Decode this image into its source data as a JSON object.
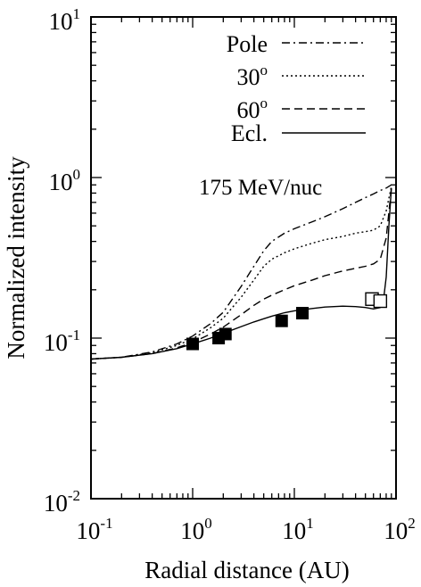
{
  "chart_data": {
    "type": "line",
    "title": "",
    "annotation": "175 MeV/nuc",
    "xlabel": "Radial distance (AU)",
    "ylabel": "Normalized intensity",
    "xscale": "log",
    "yscale": "log",
    "xlim": [
      0.1,
      100
    ],
    "ylim": [
      0.01,
      10
    ],
    "x_ticks": [
      {
        "base": "10",
        "exp": "-1",
        "value": 0.1
      },
      {
        "base": "10",
        "exp": "0",
        "value": 1
      },
      {
        "base": "10",
        "exp": "1",
        "value": 10
      },
      {
        "base": "10",
        "exp": "2",
        "value": 100
      }
    ],
    "y_ticks": [
      {
        "base": "10",
        "exp": "-2",
        "value": 0.01
      },
      {
        "base": "10",
        "exp": "-1",
        "value": 0.1
      },
      {
        "base": "10",
        "exp": "0",
        "value": 1
      },
      {
        "base": "10",
        "exp": "1",
        "value": 10
      }
    ],
    "legend_position": "top-right",
    "series": [
      {
        "name": "Pole",
        "style": "dash-dot",
        "points": [
          [
            0.1,
            0.074
          ],
          [
            0.2,
            0.076
          ],
          [
            0.4,
            0.082
          ],
          [
            0.7,
            0.092
          ],
          [
            1.0,
            0.103
          ],
          [
            1.5,
            0.123
          ],
          [
            2.0,
            0.145
          ],
          [
            3.0,
            0.21
          ],
          [
            4.0,
            0.28
          ],
          [
            5.0,
            0.35
          ],
          [
            6.0,
            0.4
          ],
          [
            8.0,
            0.45
          ],
          [
            10.0,
            0.48
          ],
          [
            15.0,
            0.53
          ],
          [
            20.0,
            0.57
          ],
          [
            30.0,
            0.64
          ],
          [
            40.0,
            0.7
          ],
          [
            50.0,
            0.75
          ],
          [
            60.0,
            0.79
          ],
          [
            70.0,
            0.83
          ],
          [
            80.0,
            0.86
          ],
          [
            90.0,
            0.9
          ]
        ]
      },
      {
        "name": "30",
        "name_sup": "o",
        "style": "dotted",
        "points": [
          [
            0.1,
            0.074
          ],
          [
            0.2,
            0.076
          ],
          [
            0.4,
            0.081
          ],
          [
            0.7,
            0.09
          ],
          [
            1.0,
            0.099
          ],
          [
            1.5,
            0.116
          ],
          [
            2.0,
            0.133
          ],
          [
            3.0,
            0.18
          ],
          [
            4.0,
            0.23
          ],
          [
            5.0,
            0.28
          ],
          [
            6.0,
            0.31
          ],
          [
            8.0,
            0.34
          ],
          [
            10.0,
            0.36
          ],
          [
            15.0,
            0.39
          ],
          [
            20.0,
            0.41
          ],
          [
            30.0,
            0.43
          ],
          [
            40.0,
            0.45
          ],
          [
            50.0,
            0.46
          ],
          [
            60.0,
            0.47
          ],
          [
            70.0,
            0.5
          ],
          [
            80.0,
            0.62
          ],
          [
            90.0,
            0.88
          ]
        ]
      },
      {
        "name": "60",
        "name_sup": "o",
        "style": "dashed",
        "points": [
          [
            0.1,
            0.074
          ],
          [
            0.2,
            0.076
          ],
          [
            0.4,
            0.08
          ],
          [
            0.7,
            0.087
          ],
          [
            1.0,
            0.094
          ],
          [
            1.5,
            0.106
          ],
          [
            2.0,
            0.117
          ],
          [
            3.0,
            0.14
          ],
          [
            4.0,
            0.16
          ],
          [
            5.0,
            0.175
          ],
          [
            6.0,
            0.185
          ],
          [
            8.0,
            0.2
          ],
          [
            10.0,
            0.212
          ],
          [
            15.0,
            0.23
          ],
          [
            20.0,
            0.245
          ],
          [
            30.0,
            0.262
          ],
          [
            40.0,
            0.272
          ],
          [
            50.0,
            0.28
          ],
          [
            60.0,
            0.29
          ],
          [
            70.0,
            0.31
          ],
          [
            80.0,
            0.42
          ],
          [
            90.0,
            0.86
          ]
        ]
      },
      {
        "name": "Ecl.",
        "style": "solid",
        "points": [
          [
            0.1,
            0.074
          ],
          [
            0.2,
            0.076
          ],
          [
            0.4,
            0.08
          ],
          [
            0.7,
            0.086
          ],
          [
            1.0,
            0.092
          ],
          [
            1.5,
            0.1
          ],
          [
            2.0,
            0.107
          ],
          [
            3.0,
            0.118
          ],
          [
            4.0,
            0.126
          ],
          [
            5.0,
            0.132
          ],
          [
            6.0,
            0.137
          ],
          [
            8.0,
            0.144
          ],
          [
            10.0,
            0.148
          ],
          [
            15.0,
            0.153
          ],
          [
            20.0,
            0.156
          ],
          [
            30.0,
            0.158
          ],
          [
            40.0,
            0.157
          ],
          [
            50.0,
            0.155
          ],
          [
            60.0,
            0.152
          ],
          [
            70.0,
            0.155
          ],
          [
            75.0,
            0.17
          ],
          [
            80.0,
            0.24
          ],
          [
            85.0,
            0.5
          ],
          [
            90.0,
            0.86
          ]
        ]
      }
    ],
    "markers": {
      "filled": [
        [
          1.0,
          0.092
        ],
        [
          1.8,
          0.1
        ],
        [
          2.1,
          0.106
        ],
        [
          7.5,
          0.128
        ],
        [
          12.0,
          0.143
        ]
      ],
      "open": [
        [
          58.0,
          0.175
        ],
        [
          70.0,
          0.17
        ]
      ]
    }
  }
}
